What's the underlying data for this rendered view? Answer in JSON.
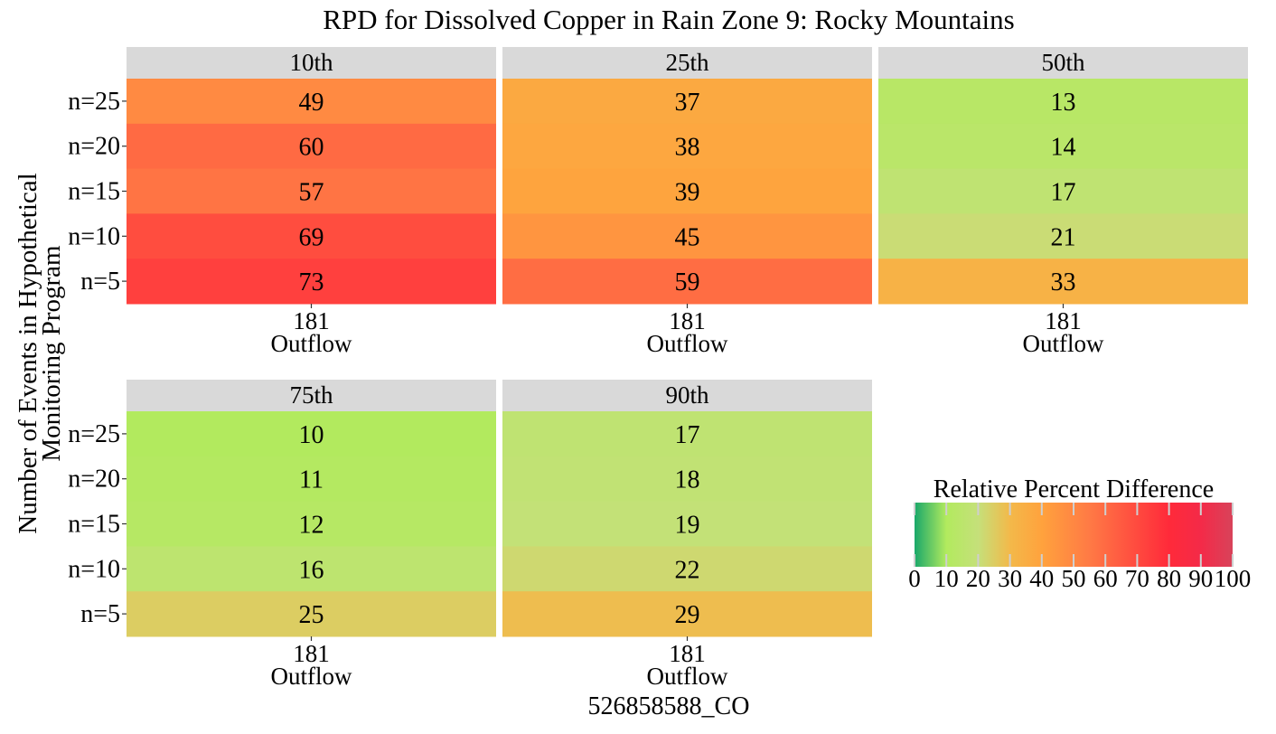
{
  "chart_data": {
    "type": "heatmap",
    "title": "RPD for Dissolved Copper in Rain Zone 9: Rocky Mountains",
    "xlabel": "526858588_CO",
    "ylabel_lines": [
      "Number of Events in Hypothetical",
      "Monitoring Program"
    ],
    "x_tick_lines": [
      "181",
      "Outflow"
    ],
    "y_categories": [
      "n=25",
      "n=20",
      "n=15",
      "n=10",
      "n=5"
    ],
    "panels": [
      {
        "label": "10th",
        "values": [
          49,
          60,
          57,
          69,
          73
        ]
      },
      {
        "label": "25th",
        "values": [
          37,
          38,
          39,
          45,
          59
        ]
      },
      {
        "label": "50th",
        "values": [
          13,
          14,
          17,
          21,
          33
        ]
      },
      {
        "label": "75th",
        "values": [
          10,
          11,
          12,
          16,
          25
        ]
      },
      {
        "label": "90th",
        "values": [
          17,
          18,
          19,
          22,
          29
        ]
      }
    ],
    "legend": {
      "title": "Relative Percent Difference",
      "range": [
        0,
        100
      ],
      "ticks": [
        0,
        10,
        20,
        30,
        40,
        50,
        60,
        70,
        80,
        90,
        100
      ],
      "placement": "right",
      "color_stops": [
        {
          "value": 0,
          "color": "#1aa86a"
        },
        {
          "value": 10,
          "color": "#b2ea5e"
        },
        {
          "value": 20,
          "color": "#c5e07a"
        },
        {
          "value": 30,
          "color": "#f3b94a"
        },
        {
          "value": 40,
          "color": "#ffa23d"
        },
        {
          "value": 55,
          "color": "#ff7a45"
        },
        {
          "value": 70,
          "color": "#ff4a3f"
        },
        {
          "value": 80,
          "color": "#ff2a3a"
        },
        {
          "value": 90,
          "color": "#f42a48"
        },
        {
          "value": 100,
          "color": "#d8435a"
        }
      ]
    },
    "colors": {
      "strip_bg": "#d9d9d9",
      "tick": "#333333",
      "legend_tick": "#cfcfcf"
    }
  }
}
